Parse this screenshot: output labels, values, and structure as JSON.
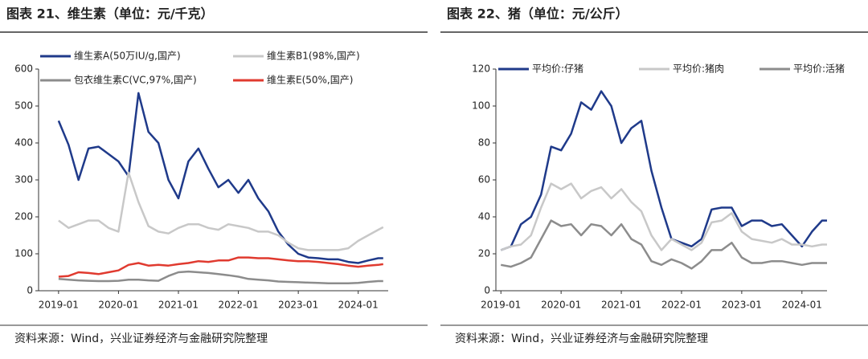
{
  "chart_data": [
    {
      "type": "line",
      "title": "图表 21、维生素（单位：元/千克）",
      "source": "资料来源：Wind，兴业证券经济与金融研究院整理",
      "x": [
        "2019-01",
        "2019-03",
        "2019-05",
        "2019-07",
        "2019-09",
        "2019-11",
        "2020-01",
        "2020-03",
        "2020-05",
        "2020-07",
        "2020-09",
        "2020-11",
        "2021-01",
        "2021-03",
        "2021-05",
        "2021-07",
        "2021-09",
        "2021-11",
        "2022-01",
        "2022-03",
        "2022-05",
        "2022-07",
        "2022-09",
        "2022-11",
        "2023-01",
        "2023-03",
        "2023-05",
        "2023-07",
        "2023-09",
        "2023-11",
        "2024-01",
        "2024-03",
        "2024-05",
        "2024-06"
      ],
      "xlim": [
        "2018-09",
        "2024-07"
      ],
      "xticks": [
        "2019-01",
        "2020-01",
        "2021-01",
        "2022-01",
        "2023-01",
        "2024-01"
      ],
      "ylim": [
        0,
        600
      ],
      "yticks": [
        0,
        100,
        200,
        300,
        400,
        500,
        600
      ],
      "series": [
        {
          "name": "维生素A(50万IU/g,国产)",
          "color": "#1f3a8a",
          "values": [
            460,
            395,
            300,
            385,
            390,
            370,
            350,
            310,
            535,
            430,
            400,
            300,
            250,
            350,
            385,
            330,
            280,
            300,
            265,
            300,
            250,
            215,
            160,
            125,
            100,
            90,
            88,
            85,
            85,
            78,
            75,
            82,
            88,
            88
          ]
        },
        {
          "name": "维生素B1(98%,国产)",
          "color": "#c8c8c8",
          "values": [
            190,
            170,
            180,
            190,
            190,
            170,
            160,
            320,
            240,
            175,
            160,
            155,
            170,
            180,
            180,
            170,
            165,
            180,
            175,
            170,
            160,
            160,
            150,
            130,
            115,
            110,
            110,
            110,
            110,
            115,
            135,
            150,
            165,
            172
          ]
        },
        {
          "name": "包衣维生素C(VC,97%,国产)",
          "color": "#8c8c8c",
          "values": [
            32,
            30,
            28,
            27,
            26,
            26,
            27,
            30,
            30,
            28,
            27,
            40,
            50,
            52,
            50,
            48,
            45,
            42,
            38,
            32,
            30,
            28,
            25,
            24,
            23,
            22,
            21,
            20,
            20,
            20,
            21,
            24,
            26,
            26
          ]
        },
        {
          "name": "维生素E(50%,国产)",
          "color": "#e03a2f",
          "values": [
            38,
            40,
            50,
            48,
            45,
            50,
            55,
            70,
            75,
            68,
            70,
            68,
            72,
            75,
            80,
            78,
            82,
            82,
            90,
            90,
            88,
            88,
            85,
            82,
            80,
            80,
            78,
            75,
            72,
            68,
            65,
            68,
            70,
            72
          ]
        }
      ]
    },
    {
      "type": "line",
      "title": "图表 22、猪（单位：元/公斤）",
      "source": "资料来源：Wind，兴业证券经济与金融研究院整理",
      "x": [
        "2019-01",
        "2019-03",
        "2019-05",
        "2019-07",
        "2019-09",
        "2019-11",
        "2020-01",
        "2020-03",
        "2020-05",
        "2020-07",
        "2020-09",
        "2020-11",
        "2021-01",
        "2021-03",
        "2021-05",
        "2021-07",
        "2021-09",
        "2021-11",
        "2022-01",
        "2022-03",
        "2022-05",
        "2022-07",
        "2022-09",
        "2022-11",
        "2023-01",
        "2023-03",
        "2023-05",
        "2023-07",
        "2023-09",
        "2023-11",
        "2024-01",
        "2024-03",
        "2024-05",
        "2024-06"
      ],
      "xlim": [
        "2018-12",
        "2024-06"
      ],
      "xticks": [
        "2019-01",
        "2020-01",
        "2021-01",
        "2022-01",
        "2023-01",
        "2024-01"
      ],
      "ylim": [
        0,
        120
      ],
      "yticks": [
        0,
        20,
        40,
        60,
        80,
        100,
        120
      ],
      "series": [
        {
          "name": "平均价:仔猪",
          "color": "#1f3a8a",
          "values": [
            22,
            24,
            36,
            40,
            52,
            78,
            76,
            85,
            102,
            98,
            108,
            100,
            80,
            88,
            92,
            65,
            45,
            28,
            26,
            24,
            28,
            44,
            45,
            45,
            35,
            38,
            38,
            35,
            36,
            30,
            24,
            32,
            38,
            38
          ]
        },
        {
          "name": "平均价:猪肉",
          "color": "#c8c8c8",
          "values": [
            22,
            24,
            25,
            30,
            45,
            58,
            55,
            58,
            50,
            54,
            56,
            50,
            55,
            48,
            43,
            30,
            22,
            28,
            25,
            22,
            26,
            37,
            38,
            42,
            32,
            28,
            27,
            26,
            28,
            25,
            25,
            24,
            25,
            25
          ]
        },
        {
          "name": "平均价:活猪",
          "color": "#8c8c8c",
          "values": [
            14,
            13,
            15,
            18,
            28,
            38,
            35,
            36,
            30,
            36,
            35,
            30,
            36,
            28,
            25,
            16,
            14,
            17,
            15,
            12,
            16,
            22,
            22,
            26,
            18,
            15,
            15,
            16,
            16,
            15,
            14,
            15,
            15,
            15
          ]
        }
      ]
    }
  ]
}
